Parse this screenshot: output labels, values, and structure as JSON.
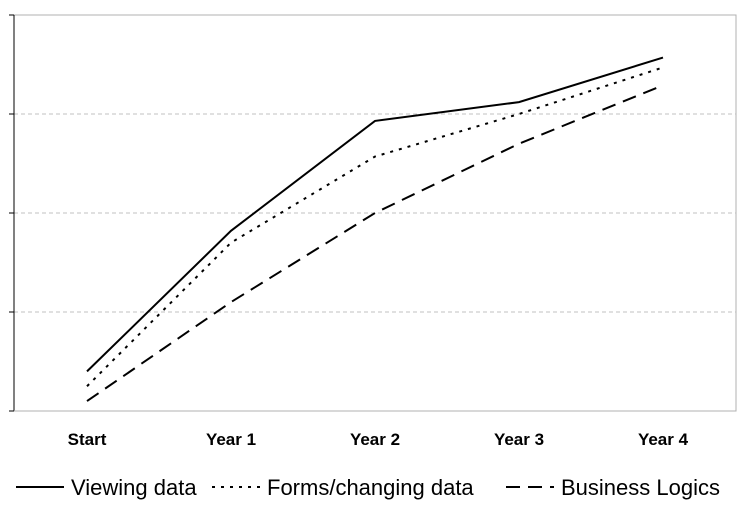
{
  "chart_data": {
    "type": "line",
    "title": "",
    "xlabel": "",
    "ylabel": "",
    "categories": [
      "Start",
      "Year 1",
      "Year 2",
      "Year 3",
      "Year 4"
    ],
    "ylim": [
      0,
      4
    ],
    "y_tick_labels_shown": false,
    "grid": "horizontal dashed",
    "legend_position": "bottom",
    "series": [
      {
        "name": "Viewing data",
        "values": [
          0.4,
          1.82,
          2.93,
          3.12,
          3.57
        ],
        "line_style": "solid",
        "color": "#000000"
      },
      {
        "name": "Forms/changing data",
        "values": [
          0.25,
          1.7,
          2.57,
          3.0,
          3.47
        ],
        "line_style": "dotted",
        "color": "#000000"
      },
      {
        "name": "Business Logics",
        "values": [
          0.1,
          1.1,
          2.0,
          2.7,
          3.29
        ],
        "line_style": "dashed",
        "color": "#000000"
      }
    ]
  }
}
